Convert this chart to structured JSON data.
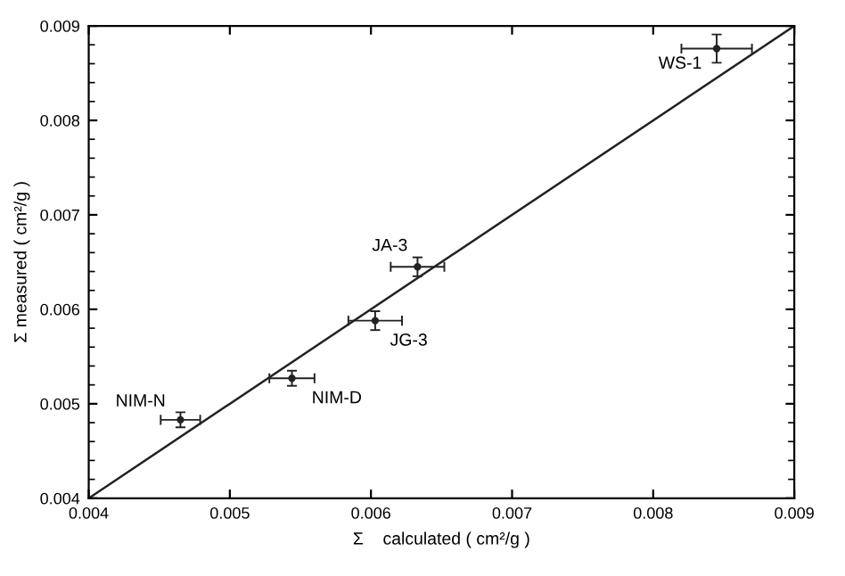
{
  "chart_data": {
    "type": "scatter",
    "xlabel": "Σ    calculated ( cm²/g )",
    "ylabel": "Σ measured ( cm²/g )",
    "series": [
      {
        "color": "#222222",
        "x": [
          0.00465,
          0.00544,
          0.00603,
          0.00633,
          0.00845
        ],
        "values": [
          0.00483,
          0.00527,
          0.00588,
          0.00645,
          0.00876
        ],
        "errors": [
          8e-05,
          8e-05,
          0.0001,
          0.0001,
          0.00015
        ],
        "xerrors": [
          0.00014,
          0.00016,
          0.00019,
          0.00019,
          0.00025
        ]
      },
      {
        "type": "line",
        "marker": "none",
        "color": "#222222",
        "x": [
          0.004,
          0.009
        ],
        "values": [
          0.004,
          0.009
        ]
      }
    ],
    "annotations": [
      {
        "text": "NIM-N",
        "x": 0.00465,
        "y": 0.00483
      },
      {
        "text": "NIM-D",
        "x": 0.00544,
        "y": 0.00527
      },
      {
        "text": "JG-3",
        "x": 0.00603,
        "y": 0.00588
      },
      {
        "text": "JA-3",
        "x": 0.00633,
        "y": 0.00645
      },
      {
        "text": "WS-1",
        "x": 0.00845,
        "y": 0.00876
      }
    ],
    "xlim": [
      0.004,
      0.009
    ],
    "ylim": [
      0.004,
      0.009
    ],
    "xticks": [
      0.004,
      0.005,
      0.006,
      0.007,
      0.008,
      0.009
    ],
    "yticks": [
      0.004,
      0.005,
      0.006,
      0.007,
      0.008,
      0.009
    ],
    "grid": false,
    "legend": false,
    "marker": "circle",
    "line_style": "solid"
  }
}
